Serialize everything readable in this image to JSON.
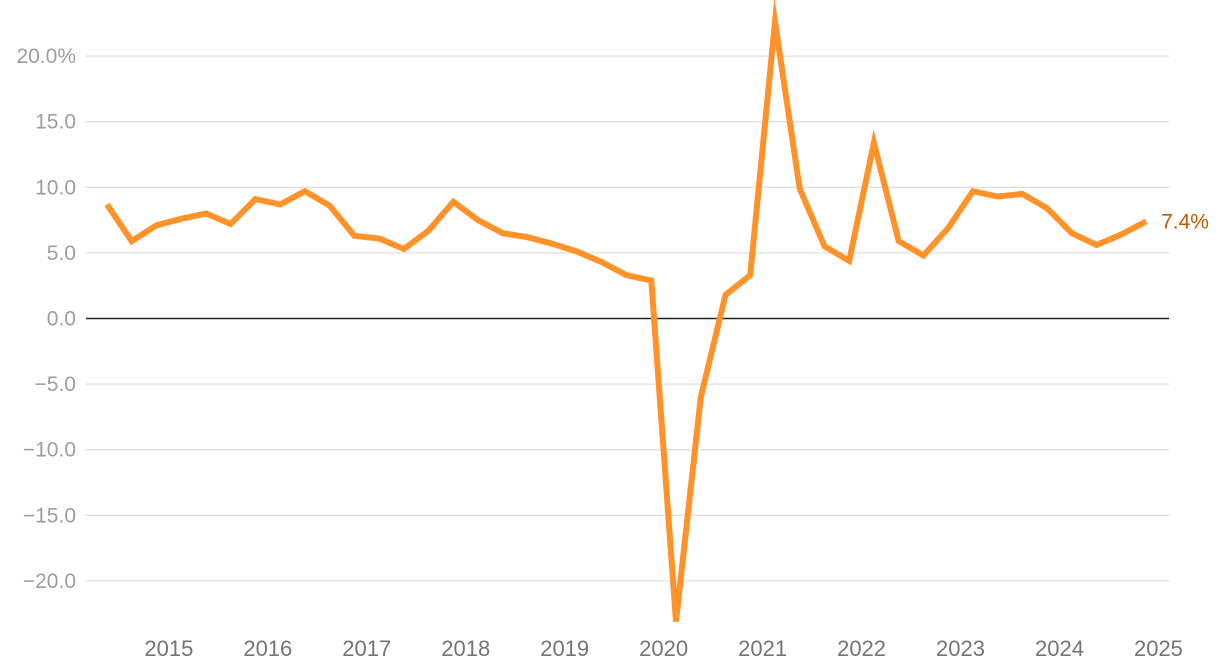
{
  "chart_data": {
    "type": "line",
    "title": "",
    "xlabel": "",
    "ylabel": "",
    "ylim": [
      -22.5,
      22.5
    ],
    "yticks": [
      {
        "value": 20,
        "label": "20.0%"
      },
      {
        "value": 15,
        "label": "15.0"
      },
      {
        "value": 10,
        "label": "10.0"
      },
      {
        "value": 5,
        "label": "5.0"
      },
      {
        "value": 0,
        "label": "0.0"
      },
      {
        "value": -5,
        "label": "−5.0"
      },
      {
        "value": -10,
        "label": "−10.0"
      },
      {
        "value": -15,
        "label": "−15.0"
      },
      {
        "value": -20,
        "label": "−20.0"
      }
    ],
    "xticks": [
      "2015",
      "2016",
      "2017",
      "2018",
      "2019",
      "2020",
      "2021",
      "2022",
      "2023",
      "2024",
      "2025"
    ],
    "grid": true,
    "zero_line": true,
    "series": [
      {
        "color": "#ff9229",
        "x": [
          "2014 Q4",
          "2015 Q1",
          "2015 Q2",
          "2015 Q3",
          "2015 Q4",
          "2016 Q1",
          "2016 Q2",
          "2016 Q3",
          "2016 Q4",
          "2017 Q1",
          "2017 Q2",
          "2017 Q3",
          "2017 Q4",
          "2018 Q1",
          "2018 Q2",
          "2018 Q3",
          "2018 Q4",
          "2019 Q1",
          "2019 Q2",
          "2019 Q3",
          "2019 Q4",
          "2020 Q1",
          "2020 Q2",
          "2020 Q3",
          "2020 Q4",
          "2021 Q1",
          "2021 Q2",
          "2021 Q3",
          "2021 Q4",
          "2022 Q1",
          "2022 Q2",
          "2022 Q3",
          "2022 Q4",
          "2023 Q1",
          "2023 Q2",
          "2023 Q3",
          "2023 Q4",
          "2024 Q1",
          "2024 Q2",
          "2024 Q3",
          "2024 Q4",
          "2025 Q1",
          "2025 Q2"
        ],
        "values": [
          8.7,
          5.9,
          7.1,
          7.6,
          8.0,
          7.2,
          9.1,
          8.7,
          9.7,
          8.6,
          6.3,
          6.1,
          5.3,
          6.7,
          8.9,
          7.5,
          6.5,
          6.2,
          5.7,
          5.1,
          4.3,
          3.3,
          2.9,
          -23.1,
          -6.0,
          1.8,
          3.3,
          22.6,
          9.9,
          5.5,
          4.4,
          13.4,
          5.9,
          4.8,
          6.9,
          9.7,
          9.3,
          9.5,
          8.4,
          6.5,
          5.6,
          6.4,
          7.4
        ]
      }
    ],
    "end_label": "7.4%",
    "end_label_color": "#c05a00"
  }
}
